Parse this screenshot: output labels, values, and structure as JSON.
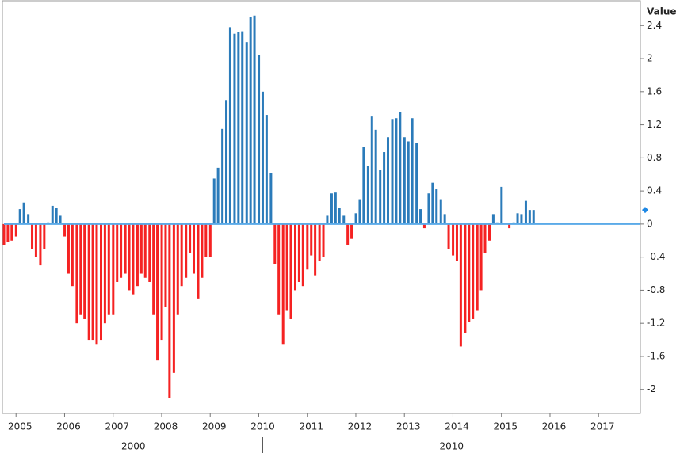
{
  "chart_data": {
    "type": "bar",
    "y_axis_label": "Value",
    "positive_color": "#2b7bba",
    "negative_color": "#f52222",
    "baseline_color": "#5aaae8",
    "x": [
      2004.67,
      2004.75,
      2004.83,
      2004.92,
      2005,
      2005.08,
      2005.17,
      2005.25,
      2005.33,
      2005.42,
      2005.5,
      2005.58,
      2005.67,
      2005.75,
      2005.83,
      2005.92,
      2006,
      2006.08,
      2006.17,
      2006.25,
      2006.33,
      2006.42,
      2006.5,
      2006.58,
      2006.67,
      2006.75,
      2006.83,
      2006.92,
      2007,
      2007.08,
      2007.17,
      2007.25,
      2007.33,
      2007.42,
      2007.5,
      2007.58,
      2007.67,
      2007.75,
      2007.83,
      2007.92,
      2008,
      2008.08,
      2008.17,
      2008.25,
      2008.33,
      2008.42,
      2008.5,
      2008.58,
      2008.67,
      2008.75,
      2008.83,
      2008.92,
      2009,
      2009.08,
      2009.17,
      2009.25,
      2009.33,
      2009.42,
      2009.5,
      2009.58,
      2009.67,
      2009.75,
      2009.83,
      2009.92,
      2010,
      2010.08,
      2010.17,
      2010.25,
      2010.33,
      2010.42,
      2010.5,
      2010.58,
      2010.67,
      2010.75,
      2010.83,
      2010.92,
      2011,
      2011.08,
      2011.17,
      2011.25,
      2011.33,
      2011.42,
      2011.5,
      2011.58,
      2011.67,
      2011.75,
      2011.83,
      2011.92,
      2012,
      2012.08,
      2012.17,
      2012.25,
      2012.33,
      2012.42,
      2012.5,
      2012.58,
      2012.67,
      2012.75,
      2012.83,
      2012.92,
      2013,
      2013.08,
      2013.17,
      2013.25,
      2013.33,
      2013.42,
      2013.5,
      2013.58,
      2013.67,
      2013.75,
      2013.83,
      2013.92,
      2014,
      2014.08,
      2014.17,
      2014.25,
      2014.33,
      2014.42,
      2014.5,
      2014.58,
      2014.67,
      2014.75,
      2014.83,
      2014.92,
      2015,
      2015.08,
      2015.17,
      2015.25,
      2015.33,
      2015.42,
      2015.5,
      2015.58
    ],
    "values": [
      -0.25,
      -0.22,
      -0.2,
      -0.15,
      0.18,
      0.26,
      0.12,
      -0.3,
      -0.4,
      -0.5,
      -0.3,
      0.02,
      0.22,
      0.2,
      0.1,
      -0.15,
      -0.6,
      -0.75,
      -1.2,
      -1.1,
      -1.15,
      -1.4,
      -1.4,
      -1.45,
      -1.4,
      -1.2,
      -1.1,
      -1.1,
      -0.7,
      -0.65,
      -0.6,
      -0.8,
      -0.85,
      -0.75,
      -0.6,
      -0.65,
      -0.7,
      -1.1,
      -1.65,
      -1.4,
      -1.0,
      -2.1,
      -1.8,
      -1.1,
      -0.75,
      -0.65,
      -0.35,
      -0.6,
      -0.9,
      -0.65,
      -0.4,
      -0.4,
      0.55,
      0.68,
      1.15,
      1.5,
      2.38,
      2.3,
      2.32,
      2.33,
      2.2,
      2.5,
      2.52,
      2.04,
      1.6,
      1.32,
      0.62,
      -0.48,
      -1.1,
      -1.45,
      -1.05,
      -1.15,
      -0.8,
      -0.7,
      -0.75,
      -0.55,
      -0.38,
      -0.62,
      -0.45,
      -0.4,
      0.1,
      0.37,
      0.38,
      0.2,
      0.1,
      -0.25,
      -0.18,
      0.13,
      0.3,
      0.93,
      0.7,
      1.3,
      1.14,
      0.65,
      0.87,
      1.05,
      1.27,
      1.28,
      1.35,
      1.05,
      1.0,
      1.28,
      0.98,
      0.18,
      -0.05,
      0.37,
      0.5,
      0.42,
      0.3,
      0.12,
      -0.3,
      -0.38,
      -0.45,
      -1.48,
      -1.32,
      -1.18,
      -1.15,
      -1.05,
      -0.8,
      -0.35,
      -0.2,
      0.12,
      0.02,
      0.45,
      0.0,
      -0.05,
      0.02,
      0.13,
      0.12,
      0.28,
      0.17,
      0.17
    ],
    "xlim": [
      2004.67,
      2017.78
    ],
    "xticks": [
      2005,
      2006,
      2007,
      2008,
      2009,
      2010,
      2011,
      2012,
      2013,
      2014,
      2015,
      2016,
      2017
    ],
    "x_groups": [
      2000,
      2010
    ],
    "ylim": [
      -2.29,
      2.69
    ],
    "yticks": [
      2.4,
      2,
      1.6,
      1.2,
      0.8,
      0.4,
      0,
      -0.4,
      -0.8,
      -1.2,
      -1.6,
      -2
    ]
  }
}
